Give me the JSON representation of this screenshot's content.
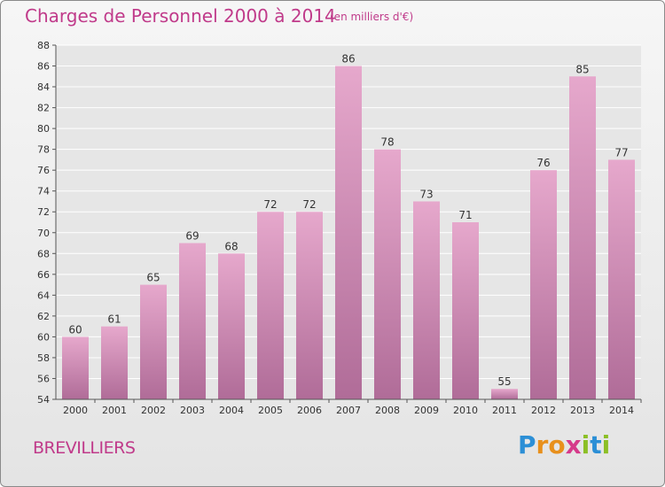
{
  "header": {
    "title": "Charges de Personnel 2000 à 2014",
    "subtitle": "(en milliers d'€)"
  },
  "footer": {
    "commune": "BREVILLIERS",
    "logo": {
      "text": "Proxiti",
      "letters": [
        {
          "ch": "P",
          "color": "#2c8fd6"
        },
        {
          "ch": "r",
          "color": "#e8901c"
        },
        {
          "ch": "o",
          "color": "#e8901c"
        },
        {
          "ch": "x",
          "color": "#d63a8a"
        },
        {
          "ch": "i",
          "color": "#8cbf26"
        },
        {
          "ch": "t",
          "color": "#2c8fd6"
        },
        {
          "ch": "i",
          "color": "#8cbf26"
        }
      ]
    }
  },
  "colors": {
    "accent": "#c03a8a",
    "bar_top": "#e6a8cc",
    "bar_bottom": "#b06c98"
  },
  "chart_data": {
    "type": "bar",
    "title": "Charges de Personnel 2000 à 2014",
    "subtitle": "(en milliers d'€)",
    "categories": [
      "2000",
      "2001",
      "2002",
      "2003",
      "2004",
      "2005",
      "2006",
      "2007",
      "2008",
      "2009",
      "2010",
      "2011",
      "2012",
      "2013",
      "2014"
    ],
    "values": [
      60,
      61,
      65,
      69,
      68,
      72,
      72,
      86,
      78,
      73,
      71,
      55,
      76,
      85,
      77
    ],
    "ylim": [
      54,
      88
    ],
    "yticks": [
      54,
      56,
      58,
      60,
      62,
      64,
      66,
      68,
      70,
      72,
      74,
      76,
      78,
      80,
      82,
      84,
      86,
      88
    ],
    "grid": true
  }
}
